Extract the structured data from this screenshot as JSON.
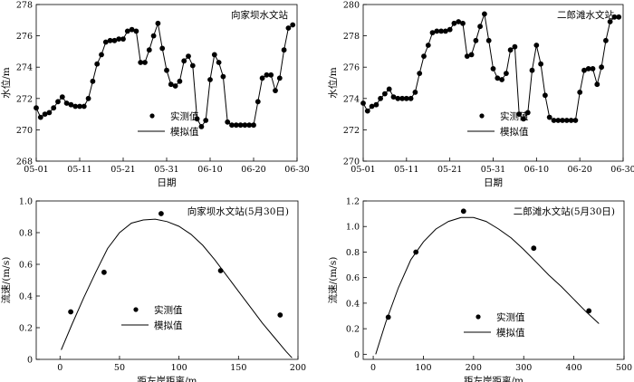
{
  "chart_data": [
    {
      "type": "line",
      "title": "向家坝水文站",
      "xlabel": "日期",
      "ylabel": "水位/m",
      "x_ticks": [
        "05-01",
        "05-11",
        "05-21",
        "05-31",
        "06-10",
        "06-20",
        "06-30"
      ],
      "y_ticks": [
        "268",
        "270",
        "272",
        "274",
        "276",
        "278"
      ],
      "xlim": [
        0,
        60
      ],
      "ylim": [
        268,
        278
      ],
      "legend": {
        "position": "bottom-left",
        "observed": "实测值",
        "simulated": "模拟值"
      },
      "series": [
        {
          "name": "实测值",
          "x": [
            0,
            1,
            2,
            3,
            4,
            5,
            6,
            7,
            8,
            9,
            10,
            11,
            12,
            13,
            14,
            15,
            16,
            17,
            18,
            19,
            20,
            21,
            22,
            23,
            24,
            25,
            26,
            27,
            28,
            29,
            30,
            31,
            32,
            33,
            34,
            35,
            36,
            37,
            38,
            39,
            40,
            41,
            42,
            43,
            44,
            45,
            46,
            47,
            48,
            49,
            50,
            51,
            52,
            53,
            54,
            55,
            56,
            57,
            58,
            59
          ],
          "y": [
            271.4,
            270.8,
            271.0,
            271.1,
            271.4,
            271.8,
            272.1,
            271.7,
            271.6,
            271.5,
            271.5,
            271.5,
            272.0,
            273.1,
            274.2,
            274.8,
            275.6,
            275.7,
            275.7,
            275.8,
            275.8,
            276.3,
            276.4,
            276.3,
            274.3,
            274.3,
            275.1,
            276.0,
            276.8,
            275.2,
            273.8,
            272.9,
            272.8,
            273.1,
            274.4,
            274.7,
            274.1,
            270.7,
            270.2,
            270.6,
            273.2,
            274.8,
            274.3,
            273.4,
            270.5,
            270.3,
            270.3,
            270.3,
            270.3,
            270.3,
            270.3,
            271.8,
            273.3,
            273.5,
            273.5,
            272.5,
            273.3,
            275.1,
            276.5,
            276.7
          ]
        },
        {
          "name": "模拟值",
          "x": [
            0,
            1,
            2,
            3,
            4,
            5,
            6,
            7,
            8,
            9,
            10,
            11,
            12,
            13,
            14,
            15,
            16,
            17,
            18,
            19,
            20,
            21,
            22,
            23,
            24,
            25,
            26,
            27,
            28,
            29,
            30,
            31,
            32,
            33,
            34,
            35,
            36,
            37,
            38,
            39,
            40,
            41,
            42,
            43,
            44,
            45,
            46,
            47,
            48,
            49,
            50,
            51,
            52,
            53,
            54,
            55,
            56,
            57,
            58,
            59
          ],
          "y": [
            271.4,
            270.8,
            271.0,
            271.1,
            271.4,
            271.8,
            272.1,
            271.7,
            271.6,
            271.5,
            271.5,
            271.5,
            272.0,
            273.1,
            274.2,
            274.8,
            275.6,
            275.7,
            275.7,
            275.8,
            275.8,
            276.3,
            276.4,
            276.3,
            274.3,
            274.3,
            275.1,
            276.0,
            276.8,
            275.2,
            273.8,
            272.9,
            272.8,
            273.1,
            274.4,
            274.7,
            274.1,
            270.7,
            270.2,
            270.6,
            273.2,
            274.8,
            274.3,
            273.4,
            270.5,
            270.3,
            270.3,
            270.3,
            270.3,
            270.3,
            270.3,
            271.8,
            273.3,
            273.5,
            273.5,
            272.5,
            273.3,
            275.1,
            276.5,
            276.7
          ]
        }
      ]
    },
    {
      "type": "line",
      "title": "二郎滩水文站",
      "xlabel": "日期",
      "ylabel": "水位/m",
      "x_ticks": [
        "05-01",
        "05-11",
        "05-21",
        "05-31",
        "06-10",
        "06-20",
        "06-30"
      ],
      "y_ticks": [
        "270",
        "272",
        "274",
        "276",
        "278",
        "280"
      ],
      "xlim": [
        0,
        60
      ],
      "ylim": [
        270,
        280
      ],
      "legend": {
        "position": "bottom-right",
        "observed": "实测值",
        "simulated": "模拟值"
      },
      "series": [
        {
          "name": "实测值",
          "x": [
            0,
            1,
            2,
            3,
            4,
            5,
            6,
            7,
            8,
            9,
            10,
            11,
            12,
            13,
            14,
            15,
            16,
            17,
            18,
            19,
            20,
            21,
            22,
            23,
            24,
            25,
            26,
            27,
            28,
            29,
            30,
            31,
            32,
            33,
            34,
            35,
            36,
            37,
            38,
            39,
            40,
            41,
            42,
            43,
            44,
            45,
            46,
            47,
            48,
            49,
            50,
            51,
            52,
            53,
            54,
            55,
            56,
            57,
            58,
            59
          ],
          "y": [
            273.7,
            273.2,
            273.5,
            273.6,
            274.0,
            274.3,
            274.6,
            274.1,
            274.0,
            274.0,
            274.0,
            274.0,
            274.4,
            275.6,
            276.7,
            277.4,
            278.2,
            278.3,
            278.3,
            278.3,
            278.4,
            278.8,
            278.9,
            278.8,
            276.7,
            276.8,
            277.7,
            278.6,
            279.4,
            277.7,
            275.9,
            275.3,
            275.2,
            275.6,
            277.1,
            277.3,
            273.0,
            272.7,
            273.1,
            275.8,
            277.4,
            276.2,
            274.2,
            272.8,
            272.6,
            272.6,
            272.6,
            272.6,
            272.6,
            272.6,
            274.4,
            275.8,
            275.9,
            275.9,
            274.9,
            276.0,
            277.7,
            278.9,
            279.2,
            279.2
          ]
        },
        {
          "name": "模拟值",
          "x": [
            0,
            1,
            2,
            3,
            4,
            5,
            6,
            7,
            8,
            9,
            10,
            11,
            12,
            13,
            14,
            15,
            16,
            17,
            18,
            19,
            20,
            21,
            22,
            23,
            24,
            25,
            26,
            27,
            28,
            29,
            30,
            31,
            32,
            33,
            34,
            35,
            36,
            37,
            38,
            39,
            40,
            41,
            42,
            43,
            44,
            45,
            46,
            47,
            48,
            49,
            50,
            51,
            52,
            53,
            54,
            55,
            56,
            57,
            58,
            59
          ],
          "y": [
            273.7,
            273.2,
            273.5,
            273.6,
            274.0,
            274.3,
            274.6,
            274.1,
            274.0,
            274.0,
            274.0,
            274.0,
            274.4,
            275.6,
            276.7,
            277.4,
            278.2,
            278.3,
            278.3,
            278.3,
            278.4,
            278.8,
            278.9,
            278.8,
            276.7,
            276.8,
            277.7,
            278.6,
            279.4,
            277.7,
            275.9,
            275.3,
            275.2,
            275.6,
            277.1,
            277.3,
            273.0,
            272.7,
            273.1,
            275.8,
            277.4,
            276.2,
            274.2,
            272.8,
            272.6,
            272.6,
            272.6,
            272.6,
            272.6,
            272.6,
            274.4,
            275.8,
            275.9,
            275.9,
            274.9,
            276.0,
            277.7,
            278.9,
            279.2,
            279.2
          ]
        }
      ]
    },
    {
      "type": "scatter",
      "title": "向家坝水文站(5月30日)",
      "xlabel": "距左岸距离/m",
      "ylabel": "流速/(m/s)",
      "x_ticks": [
        "0",
        "50",
        "100",
        "150",
        "200"
      ],
      "y_ticks": [
        "0",
        "0.2",
        "0.4",
        "0.6",
        "0.8",
        "1.0"
      ],
      "xlim": [
        -20,
        200
      ],
      "ylim": [
        0,
        1.0
      ],
      "legend": {
        "position": "bottom-center",
        "observed": "实测值",
        "simulated": "模拟值"
      },
      "series": [
        {
          "name": "实测值",
          "x": [
            9,
            37,
            85,
            135,
            185
          ],
          "y": [
            0.3,
            0.55,
            0.92,
            0.56,
            0.28
          ]
        },
        {
          "name": "模拟值",
          "x": [
            1,
            10,
            20,
            30,
            40,
            50,
            60,
            70,
            80,
            90,
            100,
            110,
            120,
            130,
            140,
            150,
            160,
            170,
            180,
            190,
            195
          ],
          "y": [
            0.06,
            0.22,
            0.39,
            0.55,
            0.7,
            0.8,
            0.86,
            0.88,
            0.885,
            0.87,
            0.84,
            0.79,
            0.72,
            0.63,
            0.53,
            0.43,
            0.33,
            0.23,
            0.14,
            0.05,
            0.01
          ]
        }
      ]
    },
    {
      "type": "scatter",
      "title": "二郎滩水文站(5月30日)",
      "xlabel": "距左岸距离/m",
      "ylabel": "流速/(m/s)",
      "x_ticks": [
        "0",
        "100",
        "200",
        "300",
        "400",
        "500"
      ],
      "y_ticks": [
        "0",
        "0.2",
        "0.4",
        "0.6",
        "0.8",
        "1.0",
        "1.2"
      ],
      "xlim": [
        -20,
        500
      ],
      "ylim": [
        -0.04,
        1.2
      ],
      "legend": {
        "position": "bottom-center",
        "observed": "实测值",
        "simulated": "模拟值"
      },
      "series": [
        {
          "name": "实测值",
          "x": [
            30,
            85,
            180,
            320,
            430
          ],
          "y": [
            0.29,
            0.8,
            1.12,
            0.83,
            0.34
          ]
        },
        {
          "name": "模拟值",
          "x": [
            5,
            25,
            50,
            75,
            100,
            125,
            150,
            175,
            200,
            225,
            250,
            275,
            300,
            325,
            350,
            375,
            400,
            425,
            450
          ],
          "y": [
            0.0,
            0.25,
            0.52,
            0.74,
            0.88,
            0.98,
            1.04,
            1.07,
            1.07,
            1.04,
            0.98,
            0.91,
            0.82,
            0.72,
            0.62,
            0.53,
            0.43,
            0.33,
            0.24
          ]
        }
      ]
    }
  ]
}
